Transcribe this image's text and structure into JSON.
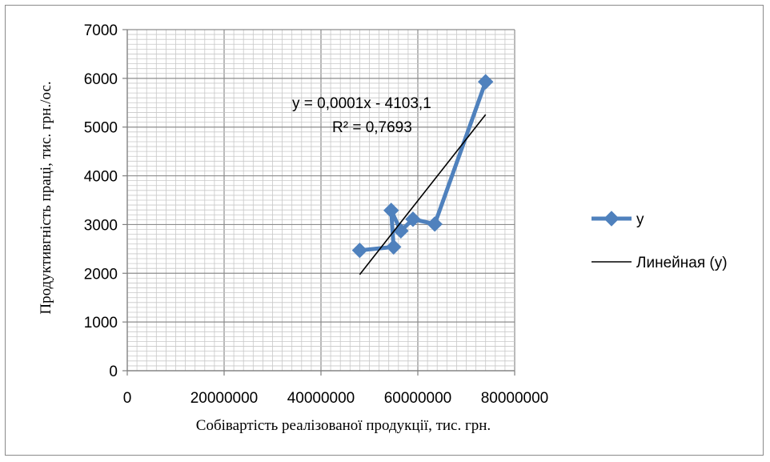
{
  "chart_data": {
    "type": "scatter",
    "xlabel": "Собівартість реалізованої продукції,  тис. грн.",
    "ylabel": "Продуктивгність праці, тис. грн./ос.",
    "xlim": [
      0,
      80000000
    ],
    "ylim": [
      0,
      7000
    ],
    "x_ticks": [
      0,
      20000000,
      40000000,
      60000000,
      80000000
    ],
    "x_tick_labels": [
      "0",
      "20000000",
      "40000000",
      "60000000",
      "80000000"
    ],
    "y_ticks": [
      0,
      1000,
      2000,
      3000,
      4000,
      5000,
      6000,
      7000
    ],
    "y_tick_labels": [
      "0",
      "1000",
      "2000",
      "3000",
      "4000",
      "5000",
      "6000",
      "7000"
    ],
    "grid": true,
    "legend_position": "right",
    "series": [
      {
        "name": "y",
        "color": "#4f81bd",
        "marker": "diamond",
        "x": [
          48000000,
          55000000,
          54500000,
          56500000,
          59000000,
          63500000,
          74000000
        ],
        "y": [
          2470,
          2540,
          3290,
          2870,
          3110,
          3010,
          5930
        ]
      }
    ],
    "trendline": {
      "name": "Линейная (y)",
      "color": "#000000",
      "x_range": [
        48000000,
        74000000
      ],
      "equation": "y = 0,0001x - 4103,1",
      "r_squared": "R² = 0,7693"
    }
  }
}
